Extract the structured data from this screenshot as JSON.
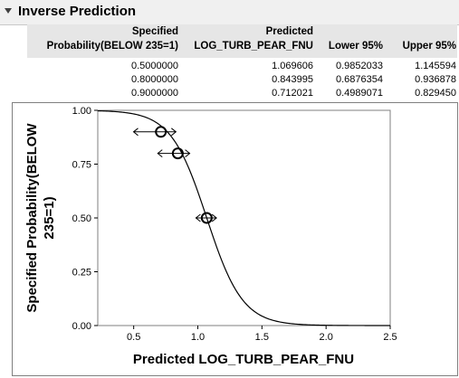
{
  "panel": {
    "title": "Inverse Prediction"
  },
  "table": {
    "headers": {
      "col1_line1": "Specified",
      "col1_line2": "Probability(BELOW 235=1)",
      "col2_line1": "Predicted",
      "col2_line2": "LOG_TURB_PEAR_FNU",
      "col3": "Lower 95%",
      "col4": "Upper 95%"
    },
    "rows": [
      {
        "prob": "0.5000000",
        "pred": "1.069606",
        "lower": "0.9852033",
        "upper": "1.145594"
      },
      {
        "prob": "0.8000000",
        "pred": "0.843995",
        "lower": "0.6876354",
        "upper": "0.936878"
      },
      {
        "prob": "0.9000000",
        "pred": "0.712021",
        "lower": "0.4989071",
        "upper": "0.829450"
      }
    ]
  },
  "chart_data": {
    "type": "line",
    "xlabel": "Predicted LOG_TURB_PEAR_FNU",
    "ylabel_line1": "Specified Probability(BELOW",
    "ylabel_line2": "235=1)",
    "xlim": [
      0.22,
      2.5
    ],
    "ylim": [
      0.0,
      1.0
    ],
    "x_ticks": [
      "0.5",
      "1.0",
      "1.5",
      "2.0",
      "2.5"
    ],
    "y_ticks": [
      "0.00",
      "0.25",
      "0.50",
      "0.75",
      "1.00"
    ],
    "grid": false,
    "curve": {
      "type": "logistic",
      "midpoint": 1.0696,
      "slope_per_unit": 7.15
    },
    "points": [
      {
        "x": 1.069606,
        "y": 0.5,
        "lower": 0.9852033,
        "upper": 1.145594
      },
      {
        "x": 0.843995,
        "y": 0.8,
        "lower": 0.6876354,
        "upper": 0.936878
      },
      {
        "x": 0.712021,
        "y": 0.9,
        "lower": 0.4989071,
        "upper": 0.82945
      }
    ]
  }
}
